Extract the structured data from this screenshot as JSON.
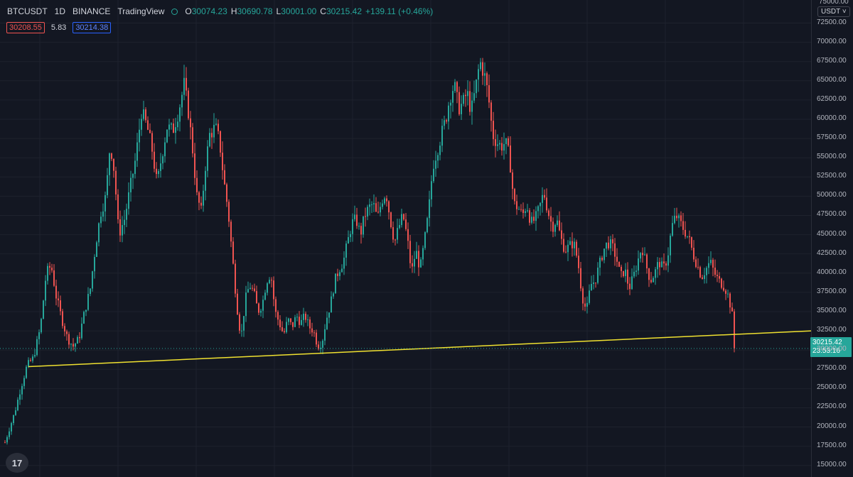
{
  "header": {
    "symbol": "BTCUSDT",
    "interval": "1D",
    "exchange": "BINANCE",
    "source": "TradingView",
    "open_label": "O",
    "open": "30074.23",
    "high_label": "H",
    "high": "30690.78",
    "low_label": "L",
    "low": "30001.00",
    "close_label": "C",
    "close": "30215.42",
    "change": "+139.11 (+0.46%)"
  },
  "quote": {
    "bid": "30208.55",
    "spread": "5.83",
    "ask": "30214.38"
  },
  "price_axis": {
    "currency": "USDT",
    "top_partial": "75000.00"
  },
  "price_tag": {
    "price": "30215.42",
    "countdown": "23:53:16"
  },
  "colors": {
    "up": "#26a69a",
    "down": "#ef5350",
    "trendline": "#f0e130",
    "background": "#131722"
  },
  "chart_data": {
    "type": "candlestick",
    "y_ticks": [
      "15000.00",
      "17500.00",
      "20000.00",
      "22500.00",
      "25000.00",
      "27500.00",
      "30000.00",
      "32500.00",
      "35000.00",
      "37500.00",
      "40000.00",
      "42500.00",
      "45000.00",
      "47500.00",
      "50000.00",
      "52500.00",
      "55000.00",
      "57500.00",
      "60000.00",
      "62500.00",
      "65000.00",
      "67500.00",
      "70000.00",
      "72500.00"
    ],
    "ylim": [
      13500,
      75500
    ],
    "last_price": 30215.42,
    "trendline": {
      "start": 27850,
      "end": 32500
    },
    "path": [
      [
        0,
        18000
      ],
      [
        14,
        22000
      ],
      [
        22,
        25000
      ],
      [
        31,
        28000
      ],
      [
        40,
        29000
      ],
      [
        50,
        33000
      ],
      [
        58,
        40000
      ],
      [
        65,
        41000
      ],
      [
        72,
        37000
      ],
      [
        80,
        34000
      ],
      [
        88,
        31500
      ],
      [
        96,
        30500
      ],
      [
        104,
        31500
      ],
      [
        112,
        35000
      ],
      [
        120,
        38000
      ],
      [
        128,
        44000
      ],
      [
        135,
        48000
      ],
      [
        142,
        50000
      ],
      [
        148,
        57000
      ],
      [
        154,
        53000
      ],
      [
        160,
        45000
      ],
      [
        168,
        47000
      ],
      [
        176,
        51000
      ],
      [
        184,
        55000
      ],
      [
        192,
        61000
      ],
      [
        200,
        59000
      ],
      [
        207,
        56000
      ],
      [
        214,
        51500
      ],
      [
        220,
        55000
      ],
      [
        228,
        59000
      ],
      [
        236,
        58500
      ],
      [
        244,
        61000
      ],
      [
        252,
        64500
      ],
      [
        258,
        61000
      ],
      [
        264,
        56000
      ],
      [
        270,
        50000
      ],
      [
        276,
        48000
      ],
      [
        282,
        54000
      ],
      [
        288,
        58000
      ],
      [
        296,
        59000
      ],
      [
        302,
        57000
      ],
      [
        308,
        52000
      ],
      [
        314,
        48000
      ],
      [
        320,
        42000
      ],
      [
        326,
        36000
      ],
      [
        332,
        31500
      ],
      [
        338,
        36500
      ],
      [
        344,
        38500
      ],
      [
        350,
        37500
      ],
      [
        356,
        35000
      ],
      [
        362,
        36000
      ],
      [
        368,
        39000
      ],
      [
        374,
        40000
      ],
      [
        380,
        35000
      ],
      [
        386,
        33500
      ],
      [
        392,
        32000
      ],
      [
        398,
        34000
      ],
      [
        404,
        33000
      ],
      [
        410,
        34500
      ],
      [
        416,
        33500
      ],
      [
        422,
        34500
      ],
      [
        428,
        33000
      ],
      [
        434,
        32500
      ],
      [
        440,
        30500
      ],
      [
        446,
        31000
      ],
      [
        452,
        34000
      ],
      [
        458,
        36000
      ],
      [
        464,
        39000
      ],
      [
        470,
        40500
      ],
      [
        476,
        41500
      ],
      [
        482,
        44000
      ],
      [
        488,
        46500
      ],
      [
        494,
        47000
      ],
      [
        500,
        45000
      ],
      [
        506,
        47500
      ],
      [
        512,
        48500
      ],
      [
        518,
        49000
      ],
      [
        524,
        47000
      ],
      [
        530,
        49500
      ],
      [
        536,
        50500
      ],
      [
        542,
        47000
      ],
      [
        548,
        44000
      ],
      [
        554,
        46000
      ],
      [
        560,
        47500
      ],
      [
        566,
        44500
      ],
      [
        572,
        40000
      ],
      [
        578,
        43000
      ],
      [
        584,
        40500
      ],
      [
        590,
        44000
      ],
      [
        596,
        48000
      ],
      [
        602,
        54000
      ],
      [
        608,
        56000
      ],
      [
        614,
        58000
      ],
      [
        620,
        60000
      ],
      [
        626,
        63000
      ],
      [
        632,
        64500
      ],
      [
        638,
        61500
      ],
      [
        644,
        62000
      ],
      [
        650,
        63500
      ],
      [
        656,
        61000
      ],
      [
        662,
        64000
      ],
      [
        668,
        67500
      ],
      [
        674,
        66000
      ],
      [
        680,
        63000
      ],
      [
        686,
        58000
      ],
      [
        692,
        57000
      ],
      [
        698,
        56500
      ],
      [
        704,
        57000
      ],
      [
        710,
        55000
      ],
      [
        716,
        49000
      ],
      [
        722,
        48500
      ],
      [
        728,
        47500
      ],
      [
        734,
        49000
      ],
      [
        740,
        46500
      ],
      [
        746,
        47000
      ],
      [
        752,
        48500
      ],
      [
        758,
        50500
      ],
      [
        764,
        48000
      ],
      [
        770,
        46000
      ],
      [
        776,
        47000
      ],
      [
        782,
        44500
      ],
      [
        788,
        43000
      ],
      [
        794,
        43500
      ],
      [
        800,
        44000
      ],
      [
        806,
        41500
      ],
      [
        812,
        37000
      ],
      [
        818,
        35000
      ],
      [
        824,
        38500
      ],
      [
        830,
        39000
      ],
      [
        836,
        41000
      ],
      [
        842,
        43000
      ],
      [
        848,
        44000
      ],
      [
        854,
        43500
      ],
      [
        860,
        42000
      ],
      [
        866,
        39500
      ],
      [
        872,
        40500
      ],
      [
        878,
        38000
      ],
      [
        884,
        39500
      ],
      [
        890,
        41500
      ],
      [
        896,
        43500
      ],
      [
        902,
        41000
      ],
      [
        908,
        39000
      ],
      [
        914,
        40000
      ],
      [
        920,
        41500
      ],
      [
        926,
        40500
      ],
      [
        932,
        42000
      ],
      [
        938,
        46000
      ],
      [
        944,
        47500
      ],
      [
        950,
        46500
      ],
      [
        956,
        45500
      ],
      [
        962,
        44500
      ],
      [
        968,
        42500
      ],
      [
        974,
        41000
      ],
      [
        980,
        39500
      ],
      [
        986,
        40500
      ],
      [
        992,
        41500
      ],
      [
        998,
        40000
      ],
      [
        1004,
        39000
      ],
      [
        1010,
        38500
      ],
      [
        1016,
        37500
      ],
      [
        1020,
        36000
      ],
      [
        1024,
        34000
      ],
      [
        1027,
        30215
      ]
    ]
  }
}
